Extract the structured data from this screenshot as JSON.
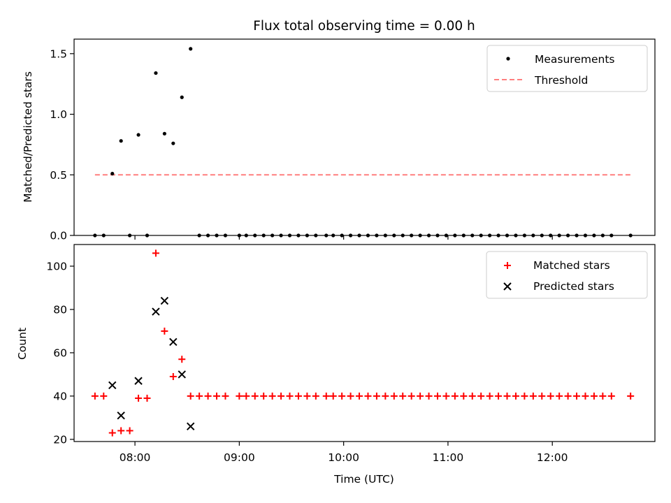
{
  "title": "Flux total observing time = 0.00 h",
  "chart_data": [
    {
      "type": "scatter",
      "ylabel": "Matched/Predicted stars",
      "ylim": [
        0,
        1.62
      ],
      "yticks": [
        "0.0",
        "0.5",
        "1.0",
        "1.5"
      ],
      "legend": {
        "position": "top-right",
        "entries": [
          "Measurements",
          "Threshold"
        ]
      },
      "threshold": {
        "value": 0.5,
        "x_start": "07:37",
        "x_end": "12:45",
        "color": "#ff7f7f",
        "label": "Threshold"
      },
      "series": [
        {
          "name": "Measurements",
          "marker": "dot",
          "color": "#000000",
          "points": [
            [
              "07:37",
              0
            ],
            [
              "07:42",
              0
            ],
            [
              "07:47",
              0.51
            ],
            [
              "07:52",
              0.78
            ],
            [
              "07:57",
              0
            ],
            [
              "08:02",
              0.83
            ],
            [
              "08:07",
              0
            ],
            [
              "08:12",
              1.34
            ],
            [
              "08:17",
              0.84
            ],
            [
              "08:22",
              0.76
            ],
            [
              "08:27",
              1.14
            ],
            [
              "08:32",
              1.54
            ],
            [
              "08:37",
              0
            ],
            [
              "08:42",
              0
            ],
            [
              "08:47",
              0
            ],
            [
              "08:52",
              0
            ],
            [
              "09:00",
              0
            ],
            [
              "09:04",
              0
            ],
            [
              "09:09",
              0
            ],
            [
              "09:14",
              0
            ],
            [
              "09:19",
              0
            ],
            [
              "09:24",
              0
            ],
            [
              "09:29",
              0
            ],
            [
              "09:34",
              0
            ],
            [
              "09:39",
              0
            ],
            [
              "09:44",
              0
            ],
            [
              "09:50",
              0
            ],
            [
              "09:54",
              0
            ],
            [
              "09:59",
              0
            ],
            [
              "10:04",
              0
            ],
            [
              "10:09",
              0
            ],
            [
              "10:14",
              0
            ],
            [
              "10:19",
              0
            ],
            [
              "10:24",
              0
            ],
            [
              "10:29",
              0
            ],
            [
              "10:34",
              0
            ],
            [
              "10:39",
              0
            ],
            [
              "10:44",
              0
            ],
            [
              "10:49",
              0
            ],
            [
              "10:54",
              0
            ],
            [
              "10:59",
              0
            ],
            [
              "11:04",
              0
            ],
            [
              "11:09",
              0
            ],
            [
              "11:14",
              0
            ],
            [
              "11:19",
              0
            ],
            [
              "11:24",
              0
            ],
            [
              "11:29",
              0
            ],
            [
              "11:34",
              0
            ],
            [
              "11:39",
              0
            ],
            [
              "11:44",
              0
            ],
            [
              "11:49",
              0
            ],
            [
              "11:54",
              0
            ],
            [
              "11:59",
              0
            ],
            [
              "12:04",
              0
            ],
            [
              "12:09",
              0
            ],
            [
              "12:14",
              0
            ],
            [
              "12:19",
              0
            ],
            [
              "12:24",
              0
            ],
            [
              "12:29",
              0
            ],
            [
              "12:34",
              0
            ],
            [
              "12:45",
              0
            ]
          ]
        }
      ]
    },
    {
      "type": "scatter",
      "xlabel": "Time (UTC)",
      "ylabel": "Count",
      "ylim": [
        19,
        110
      ],
      "yticks": [
        "20",
        "40",
        "60",
        "80",
        "100"
      ],
      "xlim": [
        "07:25",
        "12:59"
      ],
      "xticks": [
        "08:00",
        "09:00",
        "10:00",
        "11:00",
        "12:00"
      ],
      "legend": {
        "position": "top-right",
        "entries": [
          "Matched stars",
          "Predicted stars"
        ]
      },
      "series": [
        {
          "name": "Matched stars",
          "marker": "plus",
          "color": "#ff0000",
          "points": [
            [
              "07:37",
              40
            ],
            [
              "07:42",
              40
            ],
            [
              "07:47",
              23
            ],
            [
              "07:52",
              24
            ],
            [
              "07:57",
              24
            ],
            [
              "08:02",
              39
            ],
            [
              "08:07",
              39
            ],
            [
              "08:12",
              106
            ],
            [
              "08:17",
              70
            ],
            [
              "08:22",
              49
            ],
            [
              "08:27",
              57
            ],
            [
              "08:32",
              40
            ],
            [
              "08:37",
              40
            ],
            [
              "08:42",
              40
            ],
            [
              "08:47",
              40
            ],
            [
              "08:52",
              40
            ],
            [
              "09:00",
              40
            ],
            [
              "09:04",
              40
            ],
            [
              "09:09",
              40
            ],
            [
              "09:14",
              40
            ],
            [
              "09:19",
              40
            ],
            [
              "09:24",
              40
            ],
            [
              "09:29",
              40
            ],
            [
              "09:34",
              40
            ],
            [
              "09:39",
              40
            ],
            [
              "09:44",
              40
            ],
            [
              "09:50",
              40
            ],
            [
              "09:54",
              40
            ],
            [
              "09:59",
              40
            ],
            [
              "10:04",
              40
            ],
            [
              "10:09",
              40
            ],
            [
              "10:14",
              40
            ],
            [
              "10:19",
              40
            ],
            [
              "10:24",
              40
            ],
            [
              "10:29",
              40
            ],
            [
              "10:34",
              40
            ],
            [
              "10:39",
              40
            ],
            [
              "10:44",
              40
            ],
            [
              "10:49",
              40
            ],
            [
              "10:54",
              40
            ],
            [
              "10:59",
              40
            ],
            [
              "11:04",
              40
            ],
            [
              "11:09",
              40
            ],
            [
              "11:14",
              40
            ],
            [
              "11:19",
              40
            ],
            [
              "11:24",
              40
            ],
            [
              "11:29",
              40
            ],
            [
              "11:34",
              40
            ],
            [
              "11:39",
              40
            ],
            [
              "11:44",
              40
            ],
            [
              "11:49",
              40
            ],
            [
              "11:54",
              40
            ],
            [
              "11:59",
              40
            ],
            [
              "12:04",
              40
            ],
            [
              "12:09",
              40
            ],
            [
              "12:14",
              40
            ],
            [
              "12:19",
              40
            ],
            [
              "12:24",
              40
            ],
            [
              "12:29",
              40
            ],
            [
              "12:34",
              40
            ],
            [
              "12:45",
              40
            ]
          ]
        },
        {
          "name": "Predicted stars",
          "marker": "x",
          "color": "#000000",
          "points": [
            [
              "07:47",
              45
            ],
            [
              "07:52",
              31
            ],
            [
              "08:02",
              47
            ],
            [
              "08:12",
              79
            ],
            [
              "08:17",
              84
            ],
            [
              "08:22",
              65
            ],
            [
              "08:27",
              50
            ],
            [
              "08:32",
              26
            ]
          ]
        }
      ]
    }
  ]
}
